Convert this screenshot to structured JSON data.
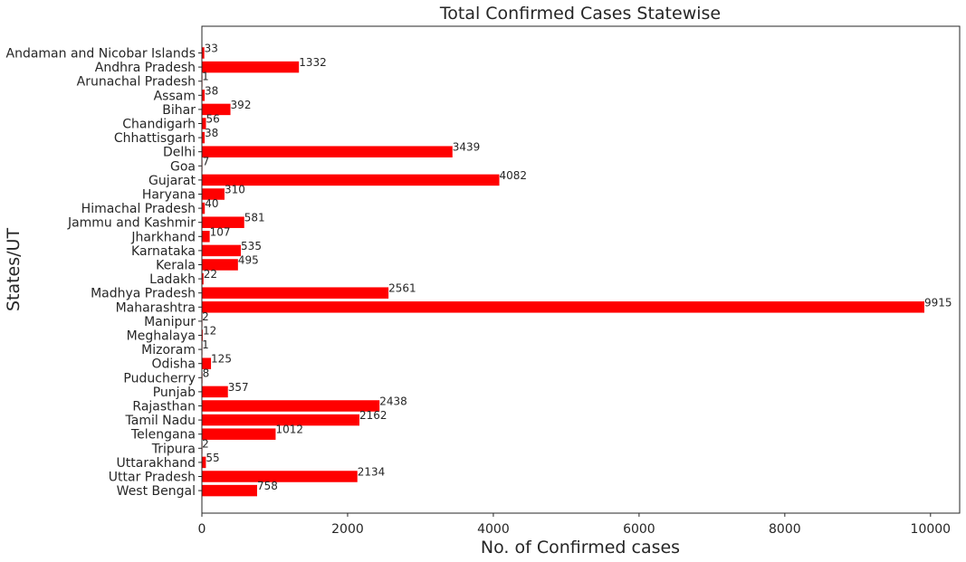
{
  "chart_data": {
    "type": "bar",
    "orientation": "horizontal",
    "title": "Total Confirmed Cases Statewise",
    "xlabel": "No. of Confirmed cases",
    "ylabel": "States/UT",
    "xlim": [
      0,
      10400
    ],
    "xticks": [
      0,
      2000,
      4000,
      6000,
      8000,
      10000
    ],
    "grid": false,
    "bar_color": "#ff0000",
    "categories": [
      "Andaman and Nicobar Islands",
      "Andhra Pradesh",
      "Arunachal Pradesh",
      "Assam",
      "Bihar",
      "Chandigarh",
      "Chhattisgarh",
      "Delhi",
      "Goa",
      "Gujarat",
      "Haryana",
      "Himachal Pradesh",
      "Jammu and Kashmir",
      "Jharkhand",
      "Karnataka",
      "Kerala",
      "Ladakh",
      "Madhya Pradesh",
      "Maharashtra",
      "Manipur",
      "Meghalaya",
      "Mizoram",
      "Odisha",
      "Puducherry",
      "Punjab",
      "Rajasthan",
      "Tamil Nadu",
      "Telengana",
      "Tripura",
      "Uttarakhand",
      "Uttar Pradesh",
      "West Bengal"
    ],
    "values": [
      33,
      1332,
      1,
      38,
      392,
      56,
      38,
      3439,
      7,
      4082,
      310,
      40,
      581,
      107,
      535,
      495,
      22,
      2561,
      9915,
      2,
      12,
      1,
      125,
      8,
      357,
      2438,
      2162,
      1012,
      2,
      55,
      2134,
      758
    ]
  }
}
